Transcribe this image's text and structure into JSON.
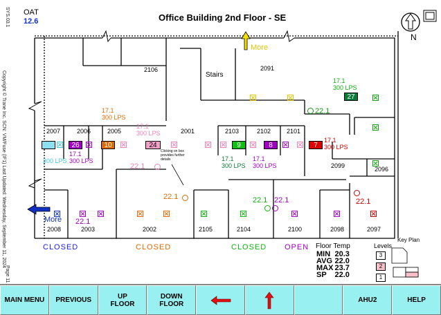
{
  "title": "Office Building 2nd Floor - SE",
  "oat": {
    "label": "OAT",
    "value": "12.6"
  },
  "north": "N",
  "more_top": "More",
  "more_left": "More",
  "side_text": {
    "top": "SYS.03.1",
    "middle": "Copyright © Trane Inc. SCN: VM/Fuse (IF1)  Last Updated: Wednesday, September 11, 2024",
    "bottom": "Page 11 of 12"
  },
  "rooms": [
    "2106",
    "Stairs",
    "2091",
    "2007",
    "2006",
    "2005",
    "2001",
    "2103",
    "2102",
    "2101",
    "2099",
    "2096",
    "2008",
    "2003",
    "2002",
    "2105",
    "2104",
    "2100",
    "2098",
    "2097"
  ],
  "flows": [
    {
      "temp": "17.1",
      "lps": "300 LPS",
      "color": "#e06a00"
    },
    {
      "temp": "17.1",
      "lps": "300 LPS",
      "color": "#f080b8"
    },
    {
      "temp": "17.1",
      "lps": "300 LPS",
      "color": "#0a7a3a"
    },
    {
      "temp": "17.1",
      "lps": "300 LPS",
      "color": "#a000c0"
    },
    {
      "temp": "17.1",
      "lps": "300 LPS",
      "color": "#a000c0"
    },
    {
      "temp": "17.1",
      "lps": "300 LPS",
      "color": "#10b010"
    },
    {
      "temp": "17.1",
      "lps": "300 LPS",
      "color": "#d00000"
    },
    {
      "temp": "17.1",
      "lps": "300 LPS",
      "color": "#40c8d8"
    }
  ],
  "indicators": [
    "26",
    "10",
    "24",
    "9",
    "8",
    "7",
    "27"
  ],
  "temps": [
    "22.1",
    "22.1",
    "22.1",
    "22.1",
    "22.1",
    "22.1",
    "22.1",
    "22.1"
  ],
  "note": "Clicking on box provides further details",
  "statuses": [
    {
      "label": "CLOSED",
      "color": "#2020e0"
    },
    {
      "label": "CLOSED",
      "color": "#e06a00"
    },
    {
      "label": "CLOSED",
      "color": "#10b010"
    },
    {
      "label": "OPEN",
      "color": "#a000c0"
    }
  ],
  "floor_temp": {
    "title": "Floor Temp",
    "rows": [
      {
        "label": "MIN",
        "value": "20.3"
      },
      {
        "label": "AVG",
        "value": "22.0"
      },
      {
        "label": "MAX",
        "value": "23.7"
      },
      {
        "label": "SP",
        "value": "22.0"
      }
    ]
  },
  "levels": {
    "title": "Levels",
    "items": [
      "3",
      "2",
      "1"
    ]
  },
  "key_plan": "Key Plan",
  "toolbar": {
    "main_menu": "MAIN MENU",
    "previous": "PREVIOUS",
    "up_floor": [
      "UP",
      "FLOOR"
    ],
    "down_floor": [
      "DOWN",
      "FLOOR"
    ],
    "ahu": "AHU2",
    "help": "HELP"
  },
  "colors": {
    "toolbar_bg": "#99f0f0",
    "wall": "#000000"
  }
}
